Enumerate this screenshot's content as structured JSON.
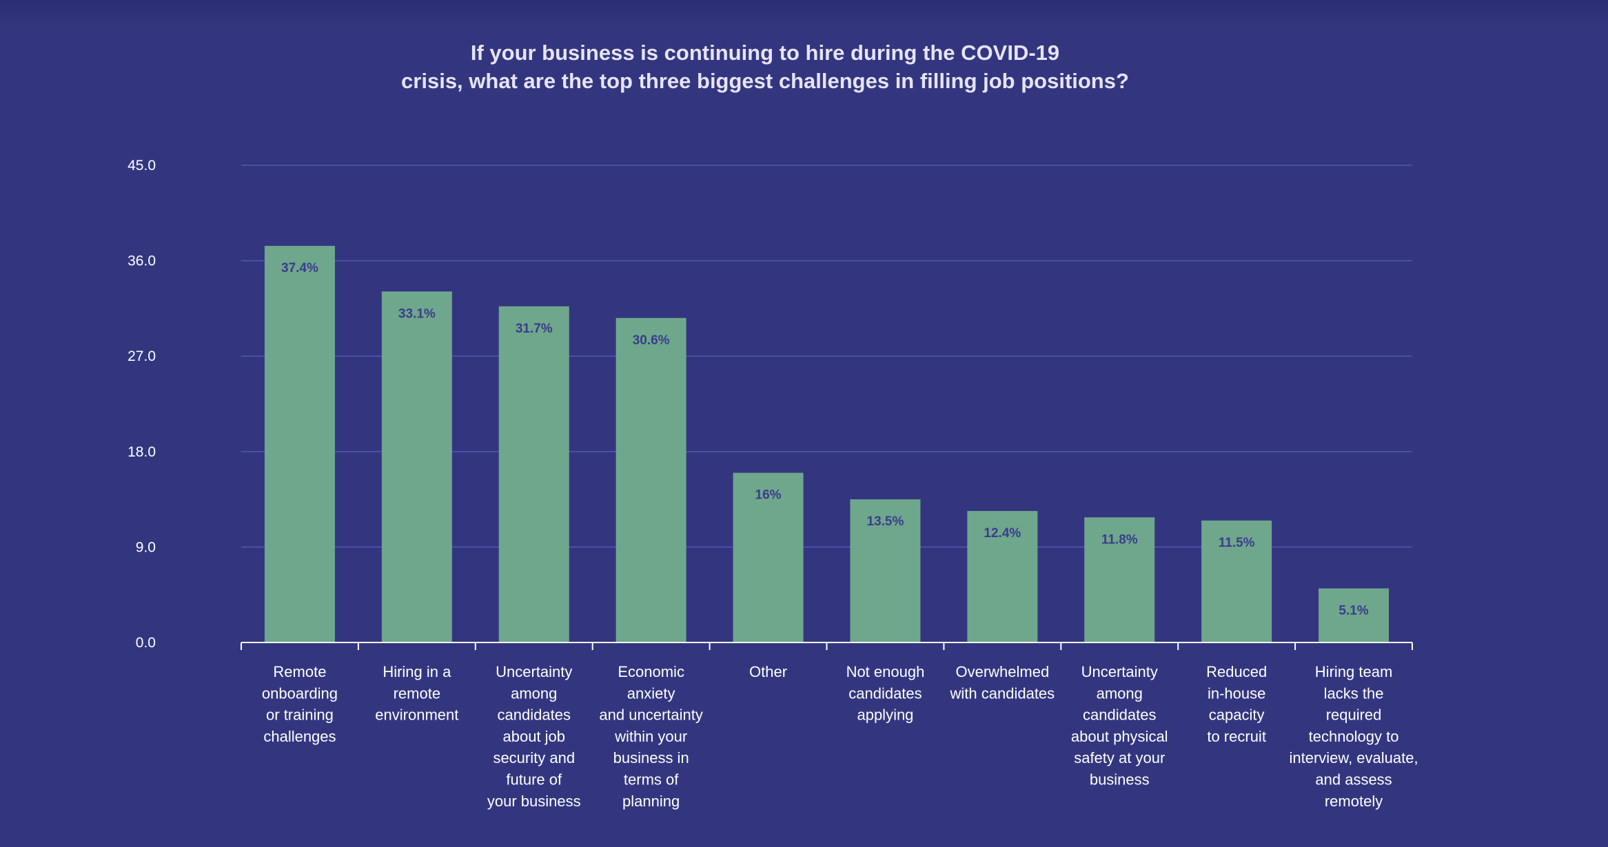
{
  "chart_data": {
    "type": "bar",
    "title_lines": [
      "If your business is continuing to hire during the COVID-19",
      "crisis, what are the top three biggest challenges in filling job positions?"
    ],
    "xlabel": "",
    "ylabel": "",
    "ylim": [
      0,
      45
    ],
    "yticks": [
      "0.0",
      "9.0",
      "18.0",
      "27.0",
      "36.0",
      "45.0"
    ],
    "ytick_values": [
      0,
      9,
      18,
      27,
      36,
      45
    ],
    "grid": true,
    "bar_color": "#6fa78c",
    "grid_color": "#5457b4",
    "categories": [
      [
        "Remote",
        "onboarding",
        "or training",
        "challenges"
      ],
      [
        "Hiring in a",
        "remote",
        "environment"
      ],
      [
        "Uncertainty",
        "among",
        "candidates",
        "about job",
        "security and",
        "future of",
        "your business"
      ],
      [
        "Economic",
        "anxiety",
        "and uncertainty",
        "within your",
        "business in",
        "terms of",
        "planning"
      ],
      [
        "Other"
      ],
      [
        "Not enough",
        "candidates",
        "applying"
      ],
      [
        "Overwhelmed",
        "with candidates"
      ],
      [
        "Uncertainty",
        "among",
        "candidates",
        "about physical",
        "safety at your",
        "business"
      ],
      [
        "Reduced",
        "in-house",
        "capacity",
        "to recruit"
      ],
      [
        "Hiring team",
        "lacks the",
        "required",
        "technology to",
        "interview, evaluate,",
        "and assess",
        "remotely"
      ]
    ],
    "values": [
      37.4,
      33.1,
      31.7,
      30.6,
      16,
      13.5,
      12.4,
      11.8,
      11.5,
      5.1
    ],
    "data_labels": [
      "37.4%",
      "33.1%",
      "31.7%",
      "30.6%",
      "16%",
      "13.5%",
      "12.4%",
      "11.8%",
      "11.5%",
      "5.1%"
    ]
  }
}
